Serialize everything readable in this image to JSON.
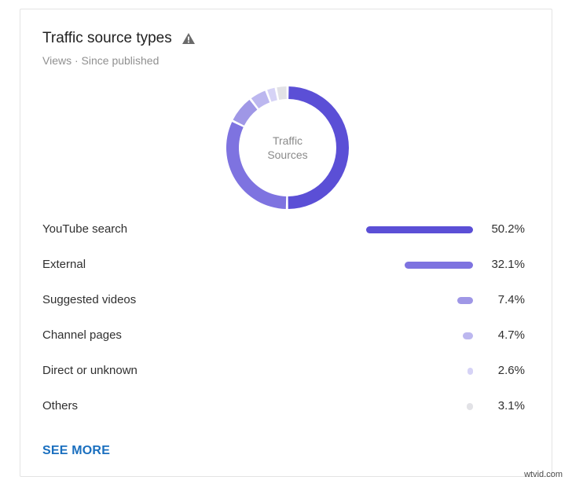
{
  "card": {
    "title": "Traffic source types",
    "subtitle": "Views · Since published",
    "warning_icon": "warning-triangle-icon",
    "see_more_label": "SEE MORE"
  },
  "donut": {
    "center_label_line1": "Traffic",
    "center_label_line2": "Sources"
  },
  "sources": [
    {
      "label": "YouTube search",
      "value": 50.2,
      "value_text": "50.2%",
      "color": "#5b4fd6"
    },
    {
      "label": "External",
      "value": 32.1,
      "value_text": "32.1%",
      "color": "#7e73e0"
    },
    {
      "label": "Suggested videos",
      "value": 7.4,
      "value_text": "7.4%",
      "color": "#9f97e6"
    },
    {
      "label": "Channel pages",
      "value": 4.7,
      "value_text": "4.7%",
      "color": "#bcb7ef"
    },
    {
      "label": "Direct or unknown",
      "value": 2.6,
      "value_text": "2.6%",
      "color": "#d6d3f6"
    },
    {
      "label": "Others",
      "value": 3.1,
      "value_text": "3.1%",
      "color": "#e2e2e6"
    }
  ],
  "watermark": "wtvid.com"
}
